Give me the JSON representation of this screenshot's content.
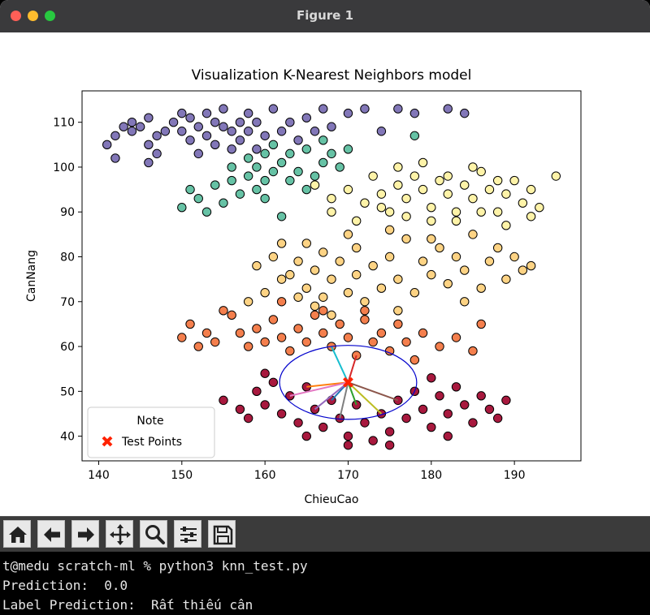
{
  "window": {
    "title": "Figure 1"
  },
  "colors": {
    "purple": "#8277b8",
    "teal": "#66c2a5",
    "yellow": "#fef3a8",
    "lightorange": "#fdd384",
    "orange": "#f47f4d",
    "crimson": "#a8193e",
    "testpoint": "#ff2200",
    "ellipse": "#0000cc"
  },
  "chart_data": {
    "type": "scatter",
    "title": "Visualization K-Nearest Neighbors model",
    "xlabel": "ChieuCao",
    "ylabel": "CanNang",
    "xlim": [
      138,
      198
    ],
    "ylim": [
      34.5,
      117
    ],
    "xticks": [
      140,
      150,
      160,
      170,
      180,
      190
    ],
    "yticks": [
      40,
      50,
      60,
      70,
      80,
      90,
      100,
      110
    ],
    "grid": false,
    "legend": {
      "position": "lower-left",
      "title": "Note",
      "entries": [
        "Test Points"
      ]
    },
    "test_point": {
      "x": 170,
      "y": 52
    },
    "series": [
      {
        "color": "purple",
        "points": [
          [
            141,
            105
          ],
          [
            142,
            107
          ],
          [
            142,
            102
          ],
          [
            143,
            109
          ],
          [
            144,
            108
          ],
          [
            144,
            110
          ],
          [
            145,
            109
          ],
          [
            146,
            111
          ],
          [
            146,
            105
          ],
          [
            146,
            101
          ],
          [
            147,
            107
          ],
          [
            147,
            103
          ],
          [
            148,
            108
          ],
          [
            149,
            110
          ],
          [
            150,
            112
          ],
          [
            150,
            108
          ],
          [
            151,
            111
          ],
          [
            151,
            106
          ],
          [
            152,
            109
          ],
          [
            152,
            103
          ],
          [
            153,
            112
          ],
          [
            153,
            107
          ],
          [
            154,
            110
          ],
          [
            154,
            105
          ],
          [
            155,
            109
          ],
          [
            155,
            113
          ],
          [
            156,
            108
          ],
          [
            156,
            104
          ],
          [
            157,
            110
          ],
          [
            157,
            106
          ],
          [
            158,
            112
          ],
          [
            158,
            108
          ],
          [
            159,
            104
          ],
          [
            159,
            110
          ],
          [
            160,
            107
          ],
          [
            161,
            113
          ],
          [
            162,
            108
          ],
          [
            163,
            110
          ],
          [
            164,
            106
          ],
          [
            165,
            111
          ],
          [
            166,
            108
          ],
          [
            167,
            113
          ],
          [
            168,
            109
          ],
          [
            170,
            112
          ],
          [
            172,
            113
          ],
          [
            174,
            108
          ],
          [
            176,
            113
          ],
          [
            178,
            112
          ],
          [
            182,
            113
          ],
          [
            184,
            112
          ]
        ]
      },
      {
        "color": "teal",
        "points": [
          [
            150,
            91
          ],
          [
            151,
            95
          ],
          [
            152,
            93
          ],
          [
            153,
            90
          ],
          [
            154,
            96
          ],
          [
            155,
            92
          ],
          [
            156,
            97
          ],
          [
            156,
            100
          ],
          [
            157,
            94
          ],
          [
            158,
            98
          ],
          [
            158,
            102
          ],
          [
            159,
            95
          ],
          [
            159,
            100
          ],
          [
            160,
            97
          ],
          [
            160,
            103
          ],
          [
            161,
            99
          ],
          [
            161,
            105
          ],
          [
            162,
            101
          ],
          [
            163,
            97
          ],
          [
            163,
            103
          ],
          [
            164,
            99
          ],
          [
            165,
            104
          ],
          [
            165,
            95
          ],
          [
            166,
            98
          ],
          [
            167,
            101
          ],
          [
            167,
            106
          ],
          [
            168,
            103
          ],
          [
            169,
            100
          ],
          [
            170,
            104
          ],
          [
            160,
            93
          ],
          [
            162,
            89
          ],
          [
            178,
            107
          ]
        ]
      },
      {
        "color": "yellow",
        "points": [
          [
            166,
            96
          ],
          [
            168,
            93
          ],
          [
            170,
            95
          ],
          [
            172,
            92
          ],
          [
            173,
            98
          ],
          [
            174,
            94
          ],
          [
            175,
            90
          ],
          [
            176,
            96
          ],
          [
            177,
            93
          ],
          [
            178,
            98
          ],
          [
            179,
            95
          ],
          [
            180,
            91
          ],
          [
            181,
            97
          ],
          [
            182,
            94
          ],
          [
            183,
            90
          ],
          [
            184,
            96
          ],
          [
            185,
            93
          ],
          [
            186,
            99
          ],
          [
            187,
            95
          ],
          [
            188,
            90
          ],
          [
            189,
            94
          ],
          [
            190,
            97
          ],
          [
            191,
            92
          ],
          [
            192,
            95
          ],
          [
            193,
            91
          ],
          [
            195,
            98
          ],
          [
            168,
            90
          ],
          [
            171,
            88
          ],
          [
            174,
            91
          ],
          [
            177,
            89
          ],
          [
            180,
            88
          ],
          [
            183,
            88
          ],
          [
            186,
            90
          ],
          [
            189,
            87
          ],
          [
            192,
            89
          ],
          [
            176,
            100
          ],
          [
            179,
            101
          ],
          [
            182,
            98
          ],
          [
            185,
            100
          ],
          [
            188,
            97
          ]
        ]
      },
      {
        "color": "lightorange",
        "points": [
          [
            159,
            78
          ],
          [
            161,
            80
          ],
          [
            162,
            83
          ],
          [
            163,
            76
          ],
          [
            164,
            79
          ],
          [
            165,
            73
          ],
          [
            166,
            77
          ],
          [
            167,
            81
          ],
          [
            167,
            71
          ],
          [
            168,
            75
          ],
          [
            169,
            79
          ],
          [
            170,
            72
          ],
          [
            171,
            82
          ],
          [
            171,
            76
          ],
          [
            172,
            70
          ],
          [
            173,
            78
          ],
          [
            174,
            73
          ],
          [
            175,
            80
          ],
          [
            176,
            75
          ],
          [
            177,
            84
          ],
          [
            178,
            72
          ],
          [
            179,
            79
          ],
          [
            180,
            76
          ],
          [
            181,
            82
          ],
          [
            182,
            74
          ],
          [
            183,
            80
          ],
          [
            184,
            77
          ],
          [
            185,
            85
          ],
          [
            186,
            73
          ],
          [
            187,
            79
          ],
          [
            188,
            82
          ],
          [
            189,
            75
          ],
          [
            190,
            80
          ],
          [
            191,
            77
          ],
          [
            158,
            70
          ],
          [
            160,
            72
          ],
          [
            162,
            75
          ],
          [
            164,
            71
          ],
          [
            166,
            69
          ],
          [
            168,
            67
          ],
          [
            176,
            68
          ],
          [
            184,
            70
          ],
          [
            192,
            78
          ],
          [
            165,
            83
          ],
          [
            170,
            85
          ],
          [
            175,
            86
          ],
          [
            180,
            84
          ]
        ]
      },
      {
        "color": "orange",
        "points": [
          [
            150,
            62
          ],
          [
            151,
            65
          ],
          [
            152,
            60
          ],
          [
            153,
            63
          ],
          [
            154,
            61
          ],
          [
            156,
            67
          ],
          [
            157,
            63
          ],
          [
            158,
            60
          ],
          [
            159,
            64
          ],
          [
            160,
            61
          ],
          [
            161,
            66
          ],
          [
            162,
            62
          ],
          [
            163,
            59
          ],
          [
            164,
            64
          ],
          [
            165,
            61
          ],
          [
            166,
            67
          ],
          [
            167,
            63
          ],
          [
            168,
            60
          ],
          [
            169,
            65
          ],
          [
            170,
            62
          ],
          [
            171,
            58
          ],
          [
            172,
            66
          ],
          [
            173,
            61
          ],
          [
            174,
            63
          ],
          [
            175,
            59
          ],
          [
            176,
            65
          ],
          [
            177,
            61
          ],
          [
            178,
            57
          ],
          [
            179,
            63
          ],
          [
            181,
            60
          ],
          [
            183,
            62
          ],
          [
            185,
            59
          ],
          [
            186,
            65
          ],
          [
            155,
            68
          ],
          [
            162,
            70
          ],
          [
            167,
            68
          ],
          [
            172,
            68
          ]
        ]
      },
      {
        "color": "crimson",
        "points": [
          [
            155,
            48
          ],
          [
            157,
            46
          ],
          [
            158,
            44
          ],
          [
            159,
            50
          ],
          [
            160,
            47
          ],
          [
            161,
            52
          ],
          [
            162,
            45
          ],
          [
            163,
            49
          ],
          [
            164,
            43
          ],
          [
            165,
            51
          ],
          [
            166,
            46
          ],
          [
            167,
            42
          ],
          [
            168,
            48
          ],
          [
            169,
            44
          ],
          [
            170,
            40
          ],
          [
            171,
            47
          ],
          [
            172,
            43
          ],
          [
            173,
            39
          ],
          [
            174,
            45
          ],
          [
            175,
            41
          ],
          [
            176,
            48
          ],
          [
            177,
            44
          ],
          [
            178,
            50
          ],
          [
            179,
            46
          ],
          [
            180,
            42
          ],
          [
            181,
            49
          ],
          [
            182,
            45
          ],
          [
            183,
            51
          ],
          [
            184,
            47
          ],
          [
            185,
            43
          ],
          [
            186,
            49
          ],
          [
            187,
            46
          ],
          [
            188,
            44
          ],
          [
            189,
            48
          ],
          [
            160,
            54
          ],
          [
            170,
            38
          ],
          [
            165,
            40
          ],
          [
            175,
            38
          ],
          [
            180,
            53
          ],
          [
            182,
            40
          ]
        ]
      }
    ]
  },
  "toolbar": {
    "buttons": [
      {
        "name": "home-button",
        "icon": "home-icon"
      },
      {
        "name": "back-button",
        "icon": "arrow-left-icon"
      },
      {
        "name": "forward-button",
        "icon": "arrow-right-icon"
      },
      {
        "name": "pan-button",
        "icon": "move-icon"
      },
      {
        "name": "zoom-button",
        "icon": "zoom-icon"
      },
      {
        "name": "configure-subplots-button",
        "icon": "sliders-icon"
      },
      {
        "name": "save-button",
        "icon": "save-icon"
      }
    ]
  },
  "terminal": {
    "lines": [
      "t@medu scratch-ml % python3 knn_test.py",
      "Prediction:  0.0",
      "Label Prediction:  Rất thiếu cân"
    ]
  }
}
